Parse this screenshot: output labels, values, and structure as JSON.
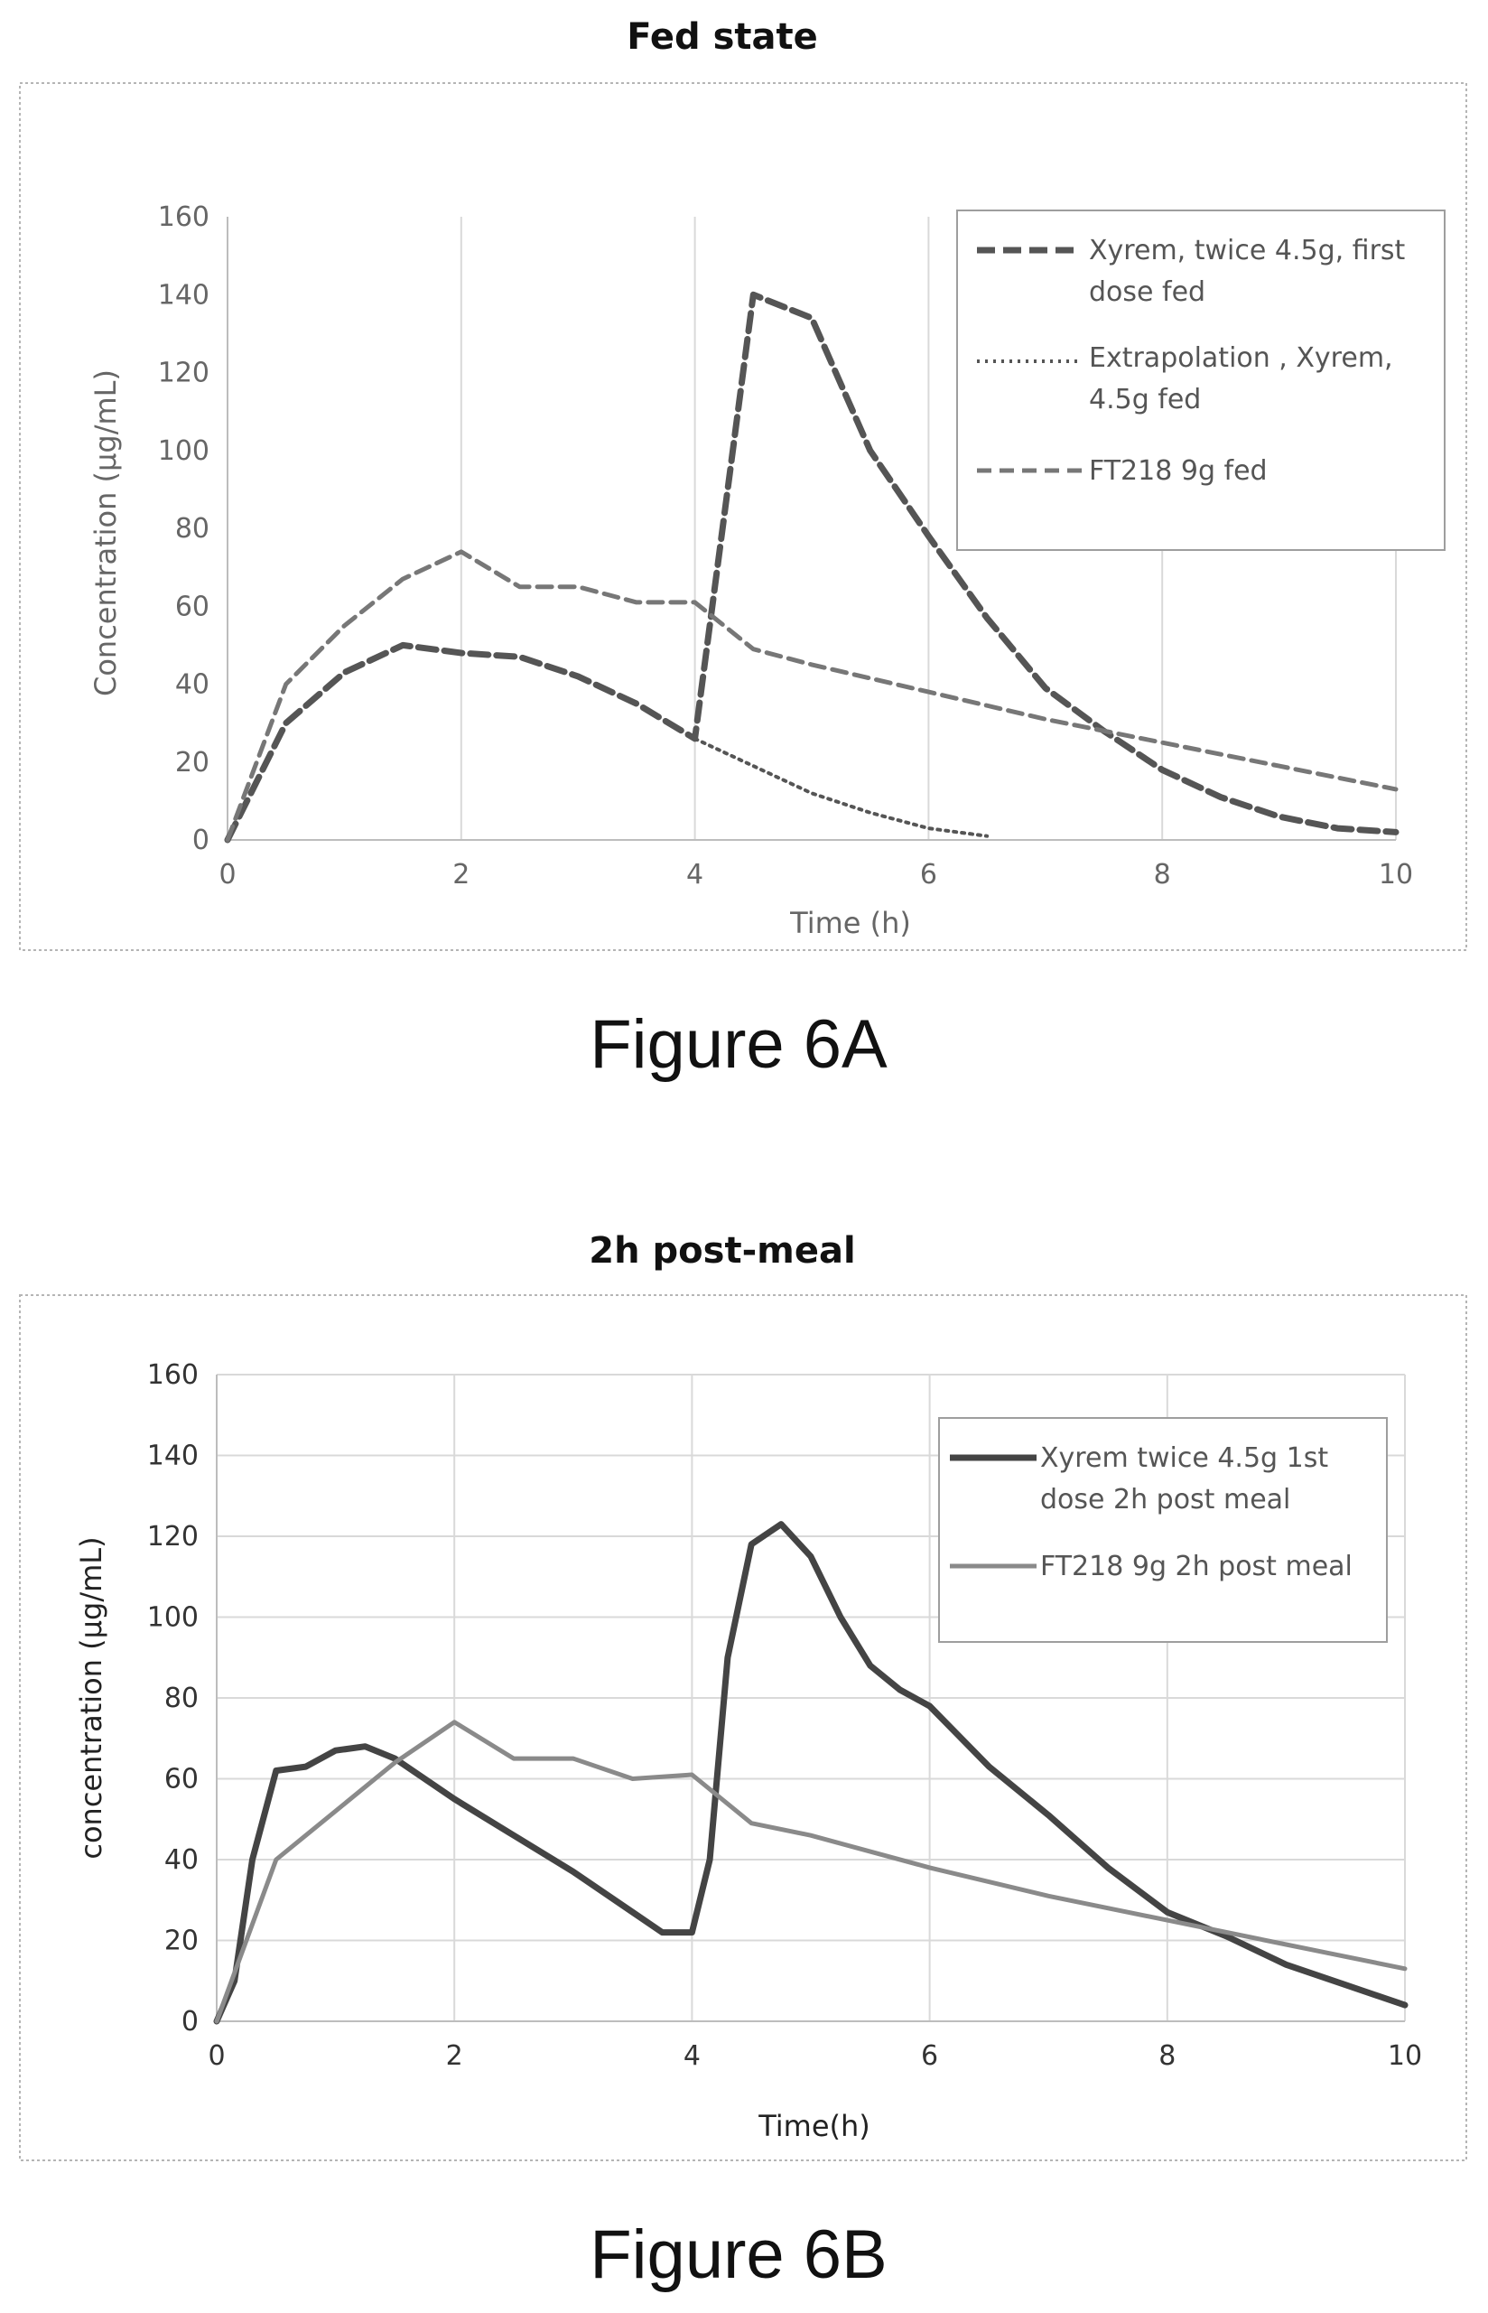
{
  "chart_data": [
    {
      "type": "line",
      "title": "Fed state",
      "caption": "Figure 6A",
      "xlabel": "Time (h)",
      "ylabel": "Concentration (µg/mL)",
      "xlim": [
        0,
        10
      ],
      "ylim": [
        0,
        160
      ],
      "x_ticks": [
        "0",
        "2",
        "4",
        "6",
        "8",
        "10"
      ],
      "y_ticks": [
        "0",
        "20",
        "40",
        "60",
        "80",
        "100",
        "120",
        "140",
        "160"
      ],
      "grid": "vertical",
      "legend": "top-right",
      "series": [
        {
          "name": "Xyrem, twice 4.5g, first dose fed",
          "style": "dashed-thick",
          "color": "#555555",
          "x": [
            0,
            0.5,
            1,
            1.5,
            2,
            2.5,
            3,
            3.5,
            4,
            4.5,
            5,
            5.5,
            6,
            6.5,
            7,
            7.5,
            8,
            8.5,
            9,
            9.5,
            10
          ],
          "y": [
            0,
            30,
            43,
            50,
            48,
            47,
            42,
            35,
            26,
            140,
            134,
            100,
            78,
            57,
            39,
            28,
            18,
            11,
            6,
            3,
            2
          ]
        },
        {
          "name": "Extrapolation , Xyrem, 4.5g fed",
          "style": "dotted",
          "color": "#555555",
          "x": [
            4,
            4.5,
            5,
            5.5,
            6,
            6.5
          ],
          "y": [
            26,
            19,
            12,
            7,
            3,
            1
          ]
        },
        {
          "name": "FT218 9g fed",
          "style": "dashed",
          "color": "#777777",
          "x": [
            0,
            0.5,
            1,
            1.5,
            2,
            2.5,
            3,
            3.5,
            4,
            4.5,
            5,
            6,
            7,
            8,
            9,
            10
          ],
          "y": [
            0,
            40,
            55,
            67,
            74,
            65,
            65,
            61,
            61,
            49,
            45,
            38,
            31,
            25,
            19,
            13
          ]
        }
      ]
    },
    {
      "type": "line",
      "title": "2h post-meal",
      "caption": "Figure 6B",
      "xlabel": "Time(h)",
      "ylabel": "concentration (µg/mL)",
      "xlim": [
        0,
        10
      ],
      "ylim": [
        0,
        160
      ],
      "x_ticks": [
        "0",
        "2",
        "4",
        "6",
        "8",
        "10"
      ],
      "y_ticks": [
        "0",
        "20",
        "40",
        "60",
        "80",
        "100",
        "120",
        "140",
        "160"
      ],
      "grid": "both",
      "legend": "top-right",
      "series": [
        {
          "name": "Xyrem twice 4.5g 1st dose 2h post meal",
          "style": "solid-thick",
          "color": "#444444",
          "x": [
            0,
            0.15,
            0.3,
            0.5,
            0.75,
            1,
            1.25,
            1.5,
            2,
            2.5,
            3,
            3.5,
            3.75,
            4,
            4.15,
            4.3,
            4.5,
            4.75,
            5,
            5.25,
            5.5,
            5.75,
            6,
            6.5,
            7,
            7.5,
            8,
            8.5,
            9,
            9.5,
            10
          ],
          "y": [
            0,
            10,
            40,
            62,
            63,
            67,
            68,
            65,
            55,
            46,
            37,
            27,
            22,
            22,
            40,
            90,
            118,
            123,
            115,
            100,
            88,
            82,
            78,
            63,
            51,
            38,
            27,
            21,
            14,
            9,
            4
          ]
        },
        {
          "name": "FT218 9g 2h post meal",
          "style": "solid",
          "color": "#8a8a8a",
          "x": [
            0,
            0.5,
            1,
            1.5,
            2,
            2.5,
            3,
            3.5,
            4,
            4.5,
            5,
            6,
            7,
            8,
            9,
            10
          ],
          "y": [
            0,
            40,
            52,
            64,
            74,
            65,
            65,
            60,
            61,
            49,
            46,
            38,
            31,
            25,
            19,
            13
          ]
        }
      ]
    }
  ]
}
